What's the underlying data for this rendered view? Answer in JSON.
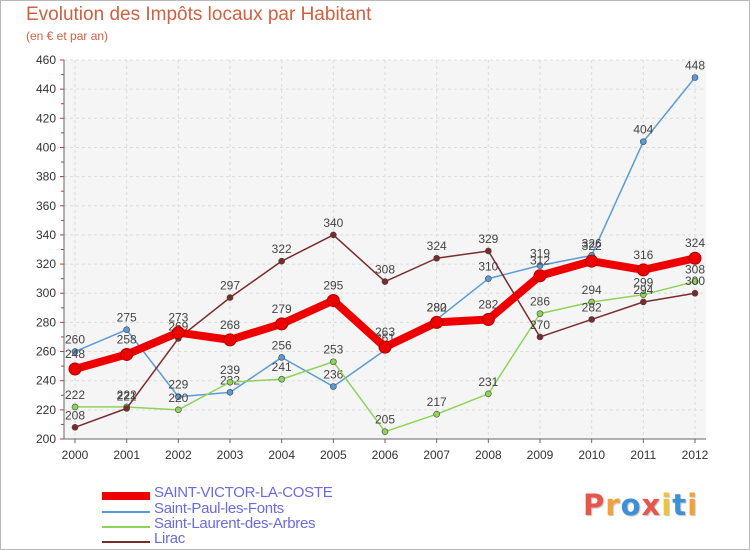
{
  "chart_data": {
    "type": "line",
    "title": "Evolution des Impôts locaux par Habitant",
    "subtitle": "(en € et par an)",
    "xlabel": "",
    "ylabel": "",
    "categories": [
      "2000",
      "2001",
      "2002",
      "2003",
      "2004",
      "2005",
      "2006",
      "2007",
      "2008",
      "2009",
      "2010",
      "2011",
      "2012"
    ],
    "ylim": [
      200,
      460
    ],
    "yticks": [
      200,
      220,
      240,
      260,
      280,
      300,
      320,
      340,
      360,
      380,
      400,
      420,
      440,
      460
    ],
    "grid": true,
    "legend_position": "bottom-left",
    "series": [
      {
        "name": "SAINT-VICTOR-LA-COSTE",
        "color": "#ee0000",
        "values": [
          248,
          258,
          273,
          268,
          279,
          295,
          263,
          280,
          282,
          312,
          322,
          316,
          324
        ],
        "labels": [
          "248",
          "258",
          "273",
          "268",
          "279",
          "295",
          "263",
          "280",
          "282",
          "312",
          "322",
          "316",
          "324"
        ]
      },
      {
        "name": "Saint-Paul-les-Fonts",
        "color": "#5b9bd5",
        "values": [
          260,
          275,
          229,
          232,
          256,
          236,
          261,
          282,
          310,
          319,
          326,
          404,
          448
        ],
        "labels": [
          "260",
          "275",
          "229",
          "232",
          "256",
          "236",
          "261",
          "282",
          "310",
          "319",
          "326",
          "404",
          "448"
        ]
      },
      {
        "name": "Saint-Laurent-des-Arbres",
        "color": "#8ed35a",
        "values": [
          222,
          222,
          220,
          239,
          241,
          253,
          205,
          217,
          231,
          286,
          294,
          299,
          308
        ],
        "labels": [
          "222",
          "222",
          "220",
          "239",
          "241",
          "253",
          "205",
          "217",
          "231",
          "286",
          "294",
          "299",
          "308"
        ]
      },
      {
        "name": "Lirac",
        "color": "#7a2c2c",
        "values": [
          208,
          221,
          269,
          297,
          322,
          340,
          308,
          324,
          329,
          270,
          282,
          294,
          300
        ],
        "labels": [
          "208",
          "221",
          "269",
          "297",
          "322",
          "340",
          "308",
          "324",
          "329",
          "270",
          "282",
          "294",
          "300"
        ]
      }
    ]
  },
  "logo": {
    "letters": [
      "P",
      "r",
      "o",
      "x",
      "i",
      "t",
      "i"
    ],
    "colors": [
      "#e8554a",
      "#f2a23a",
      "#3d8fd6",
      "#e8554a",
      "#f2c23a",
      "#3d8fd6",
      "#f2a23a"
    ]
  }
}
